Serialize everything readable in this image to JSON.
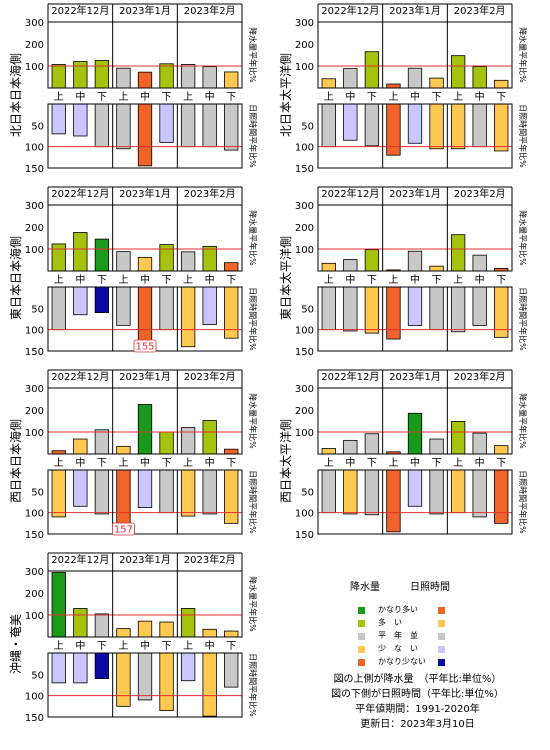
{
  "months": [
    "2022年12月",
    "2023年1月",
    "2023年2月"
  ],
  "periods": [
    "上",
    "中",
    "下",
    "上",
    "中",
    "下",
    "上",
    "中",
    "下"
  ],
  "precip_axis_label": "降水量平年比%",
  "sun_axis_label": "日照時間平年比%",
  "legend": {
    "precip_header": "降水量",
    "sun_header": "日照時間",
    "items": [
      {
        "label": "かなり多い",
        "precip_color": "#1a9a1a",
        "sun_color": "#f0642a"
      },
      {
        "label": "多　い",
        "precip_color": "#a7c20d",
        "sun_color": "#ffc850"
      },
      {
        "label": "平　年　並",
        "precip_color": "#c8c8c8",
        "sun_color": "#c8c8c8"
      },
      {
        "label": "少　な　い",
        "precip_color": "#ffc850",
        "sun_color": "#c8c8ff"
      },
      {
        "label": "かなり少ない",
        "precip_color": "#f0642a",
        "sun_color": "#0a0aa0"
      }
    ],
    "notes": [
      "図の上側が降水量　（平年比:単位%）",
      "図の下側が日照時間（平年比:単位%）",
      "平年値期間：1991-2020年",
      "更新日：2023年3月10日"
    ]
  },
  "chart_data": [
    {
      "type": "bar",
      "region": "北日本日本海側",
      "categories": [
        "12月上",
        "12月中",
        "12月下",
        "1月上",
        "1月中",
        "1月下",
        "2月上",
        "2月中",
        "2月下"
      ],
      "precip": {
        "ylim": [
          0,
          300
        ],
        "ticks": [
          100,
          200,
          300
        ],
        "values": [
          107,
          120,
          125,
          90,
          72,
          110,
          107,
          97,
          73
        ],
        "classes": [
          1,
          1,
          1,
          2,
          4,
          1,
          2,
          2,
          3
        ]
      },
      "sunshine": {
        "ylim": [
          0,
          150
        ],
        "ticks": [
          50,
          100,
          150
        ],
        "values": [
          70,
          75,
          100,
          105,
          145,
          90,
          100,
          100,
          108
        ],
        "classes": [
          3,
          3,
          2,
          2,
          0,
          3,
          2,
          2,
          2
        ]
      },
      "annotation": null
    },
    {
      "type": "bar",
      "region": "北日本太平洋側",
      "categories": [
        "12月上",
        "12月中",
        "12月下",
        "1月上",
        "1月中",
        "1月下",
        "2月上",
        "2月中",
        "2月下"
      ],
      "precip": {
        "ylim": [
          0,
          300
        ],
        "ticks": [
          100,
          200,
          300
        ],
        "values": [
          42,
          88,
          165,
          18,
          90,
          45,
          147,
          97,
          35
        ],
        "classes": [
          3,
          2,
          1,
          4,
          2,
          3,
          1,
          1,
          3
        ]
      },
      "sunshine": {
        "ylim": [
          0,
          150
        ],
        "ticks": [
          50,
          100,
          150
        ],
        "values": [
          100,
          85,
          98,
          120,
          92,
          105,
          105,
          100,
          110
        ],
        "classes": [
          2,
          3,
          2,
          0,
          3,
          1,
          1,
          2,
          1
        ]
      },
      "annotation": null
    },
    {
      "type": "bar",
      "region": "東日本日本海側",
      "categories": [
        "12月上",
        "12月中",
        "12月下",
        "1月上",
        "1月中",
        "1月下",
        "2月上",
        "2月中",
        "2月下"
      ],
      "precip": {
        "ylim": [
          0,
          300
        ],
        "ticks": [
          100,
          200,
          300
        ],
        "values": [
          123,
          175,
          145,
          88,
          62,
          120,
          87,
          112,
          38
        ],
        "classes": [
          1,
          1,
          0,
          2,
          3,
          1,
          2,
          1,
          4
        ]
      },
      "sunshine": {
        "ylim": [
          0,
          150
        ],
        "ticks": [
          50,
          100,
          150
        ],
        "values": [
          100,
          65,
          60,
          90,
          155,
          100,
          140,
          88,
          120
        ],
        "classes": [
          2,
          3,
          4,
          2,
          0,
          2,
          1,
          3,
          1
        ]
      },
      "annotation": {
        "index": 4,
        "text": "155"
      }
    },
    {
      "type": "bar",
      "region": "東日本太平洋側",
      "categories": [
        "12月上",
        "12月中",
        "12月下",
        "1月上",
        "1月中",
        "1月下",
        "2月上",
        "2月中",
        "2月下"
      ],
      "precip": {
        "ylim": [
          0,
          300
        ],
        "ticks": [
          100,
          200,
          300
        ],
        "values": [
          35,
          52,
          97,
          5,
          90,
          22,
          165,
          72,
          12
        ],
        "classes": [
          3,
          2,
          1,
          4,
          2,
          3,
          1,
          2,
          4
        ]
      },
      "sunshine": {
        "ylim": [
          0,
          150
        ],
        "ticks": [
          50,
          100,
          150
        ],
        "values": [
          100,
          103,
          108,
          122,
          90,
          100,
          105,
          90,
          118
        ],
        "classes": [
          2,
          2,
          1,
          0,
          3,
          2,
          2,
          2,
          1
        ]
      },
      "annotation": null
    },
    {
      "type": "bar",
      "region": "西日本日本海側",
      "categories": [
        "12月上",
        "12月中",
        "12月下",
        "1月上",
        "1月中",
        "1月下",
        "2月上",
        "2月中",
        "2月下"
      ],
      "precip": {
        "ylim": [
          0,
          300
        ],
        "ticks": [
          100,
          200,
          300
        ],
        "values": [
          15,
          68,
          110,
          35,
          225,
          100,
          120,
          152,
          22
        ],
        "classes": [
          4,
          3,
          2,
          3,
          0,
          1,
          2,
          1,
          4
        ]
      },
      "sunshine": {
        "ylim": [
          0,
          150
        ],
        "ticks": [
          50,
          100,
          150
        ],
        "values": [
          110,
          85,
          103,
          157,
          88,
          100,
          108,
          103,
          125
        ],
        "classes": [
          1,
          3,
          2,
          0,
          3,
          2,
          1,
          2,
          1
        ]
      },
      "annotation": {
        "index": 3,
        "text": "157"
      }
    },
    {
      "type": "bar",
      "region": "西日本太平洋側",
      "categories": [
        "12月上",
        "12月中",
        "12月下",
        "1月上",
        "1月中",
        "1月下",
        "2月上",
        "2月中",
        "2月下"
      ],
      "precip": {
        "ylim": [
          0,
          300
        ],
        "ticks": [
          100,
          200,
          300
        ],
        "values": [
          25,
          62,
          92,
          10,
          185,
          68,
          148,
          95,
          38
        ],
        "classes": [
          3,
          2,
          2,
          4,
          0,
          2,
          1,
          2,
          3
        ]
      },
      "sunshine": {
        "ylim": [
          0,
          150
        ],
        "ticks": [
          50,
          100,
          150
        ],
        "values": [
          100,
          103,
          105,
          145,
          85,
          103,
          100,
          110,
          125
        ],
        "classes": [
          2,
          1,
          2,
          0,
          3,
          2,
          1,
          2,
          0
        ]
      },
      "annotation": null
    },
    {
      "type": "bar",
      "region": "沖縄・奄美",
      "categories": [
        "12月上",
        "12月中",
        "12月下",
        "1月上",
        "1月中",
        "1月下",
        "2月上",
        "2月中",
        "2月下"
      ],
      "precip": {
        "ylim": [
          0,
          300
        ],
        "ticks": [
          100,
          200,
          300
        ],
        "values": [
          293,
          130,
          105,
          38,
          72,
          68,
          130,
          35,
          27
        ],
        "classes": [
          0,
          1,
          2,
          3,
          3,
          3,
          1,
          3,
          3
        ]
      },
      "sunshine": {
        "ylim": [
          0,
          150
        ],
        "ticks": [
          50,
          100,
          150
        ],
        "values": [
          70,
          70,
          60,
          125,
          110,
          135,
          65,
          148,
          80
        ],
        "classes": [
          3,
          3,
          4,
          1,
          2,
          1,
          3,
          1,
          2
        ]
      },
      "annotation": null
    }
  ]
}
